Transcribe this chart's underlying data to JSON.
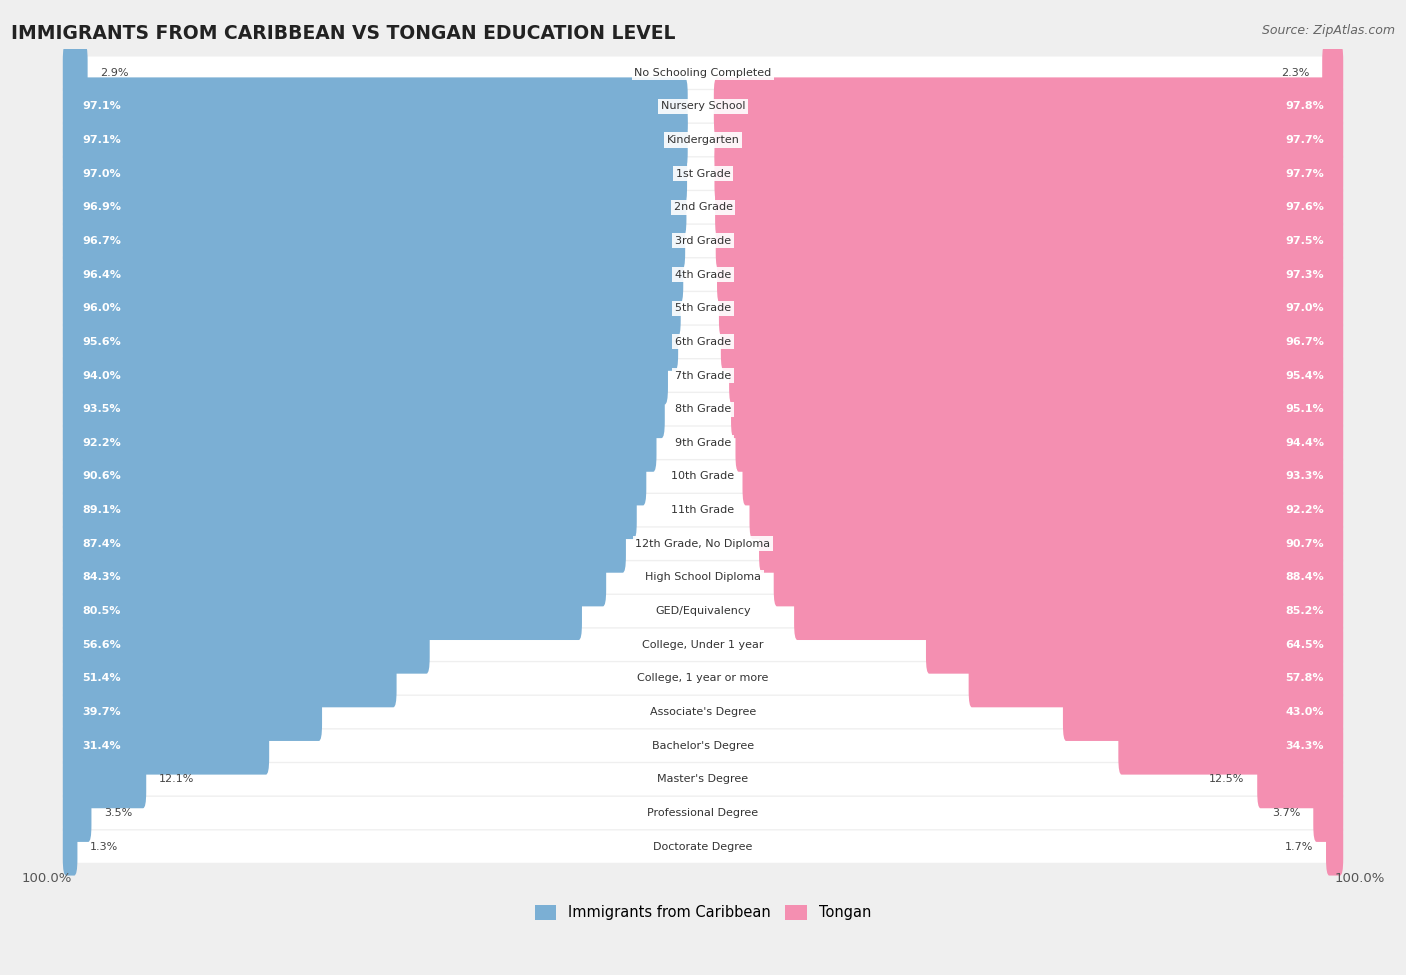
{
  "title": "IMMIGRANTS FROM CARIBBEAN VS TONGAN EDUCATION LEVEL",
  "source": "Source: ZipAtlas.com",
  "categories": [
    "No Schooling Completed",
    "Nursery School",
    "Kindergarten",
    "1st Grade",
    "2nd Grade",
    "3rd Grade",
    "4th Grade",
    "5th Grade",
    "6th Grade",
    "7th Grade",
    "8th Grade",
    "9th Grade",
    "10th Grade",
    "11th Grade",
    "12th Grade, No Diploma",
    "High School Diploma",
    "GED/Equivalency",
    "College, Under 1 year",
    "College, 1 year or more",
    "Associate's Degree",
    "Bachelor's Degree",
    "Master's Degree",
    "Professional Degree",
    "Doctorate Degree"
  ],
  "caribbean": [
    2.9,
    97.1,
    97.1,
    97.0,
    96.9,
    96.7,
    96.4,
    96.0,
    95.6,
    94.0,
    93.5,
    92.2,
    90.6,
    89.1,
    87.4,
    84.3,
    80.5,
    56.6,
    51.4,
    39.7,
    31.4,
    12.1,
    3.5,
    1.3
  ],
  "tongan": [
    2.3,
    97.8,
    97.7,
    97.7,
    97.6,
    97.5,
    97.3,
    97.0,
    96.7,
    95.4,
    95.1,
    94.4,
    93.3,
    92.2,
    90.7,
    88.4,
    85.2,
    64.5,
    57.8,
    43.0,
    34.3,
    12.5,
    3.7,
    1.7
  ],
  "caribbean_color": "#7bafd4",
  "tongan_color": "#f48fb1",
  "background_color": "#efefef",
  "row_bg_color": "#ffffff",
  "legend_label_caribbean": "Immigrants from Caribbean",
  "legend_label_tongan": "Tongan",
  "inside_threshold": 15.0
}
